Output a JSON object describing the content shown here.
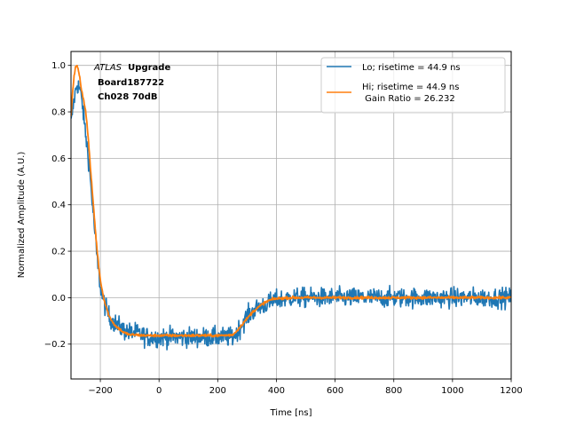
{
  "chart_data": {
    "type": "line",
    "xlabel": "Time [ns]",
    "ylabel": "Normalized Amplitude (A.U.)",
    "xlim": [
      -300,
      1200
    ],
    "ylim": [
      -0.35,
      1.06
    ],
    "xticks": [
      -200,
      0,
      200,
      400,
      600,
      800,
      1000,
      1200
    ],
    "yticks": [
      -0.2,
      0.0,
      0.2,
      0.4,
      0.6,
      0.8,
      1.0
    ],
    "xtick_labels": [
      "−200",
      "0",
      "200",
      "400",
      "600",
      "800",
      "1000",
      "1200"
    ],
    "ytick_labels": [
      "−0.2",
      "0.0",
      "0.2",
      "0.4",
      "0.6",
      "0.8",
      "1.0"
    ],
    "grid": true,
    "legend_position": "upper-right",
    "annotation": {
      "atlas": "ATLAS",
      "upgrade": "Upgrade",
      "board": "Board187722",
      "channel": "Ch028 70dB"
    },
    "series": [
      {
        "name": "Lo; risetime = 44.9 ns",
        "color": "#1f77b4",
        "noise": 0.03,
        "x": [
          -300,
          -290,
          -280,
          -270,
          -260,
          -250,
          -240,
          -230,
          -220,
          -210,
          -200,
          -190,
          -180,
          -170,
          -160,
          -150,
          -140,
          -120,
          -100,
          -80,
          -60,
          -40,
          -20,
          0,
          50,
          100,
          150,
          200,
          225,
          250,
          260,
          280,
          300,
          320,
          340,
          360,
          380,
          400,
          450,
          500,
          600,
          700,
          800,
          900,
          1000,
          1100,
          1200
        ],
        "y": [
          0.75,
          0.85,
          0.92,
          0.9,
          0.82,
          0.7,
          0.6,
          0.45,
          0.3,
          0.15,
          0.05,
          -0.01,
          -0.05,
          -0.08,
          -0.1,
          -0.11,
          -0.12,
          -0.14,
          -0.15,
          -0.15,
          -0.16,
          -0.17,
          -0.17,
          -0.17,
          -0.17,
          -0.17,
          -0.17,
          -0.17,
          -0.17,
          -0.17,
          -0.16,
          -0.12,
          -0.08,
          -0.06,
          -0.04,
          -0.03,
          -0.02,
          -0.01,
          0.0,
          0.0,
          0.0,
          0.0,
          0.0,
          0.0,
          0.0,
          0.0,
          0.0
        ]
      },
      {
        "name": "Hi; risetime = 44.9 ns\n Gain Ratio = 26.232",
        "color": "#ff7f0e",
        "noise": 0.004,
        "x": [
          -300,
          -295,
          -290,
          -285,
          -280,
          -275,
          -270,
          -265,
          -260,
          -255,
          -250,
          -245,
          -240,
          -235,
          -230,
          -225,
          -220,
          -215,
          -210,
          -205,
          -200,
          -195,
          -190,
          -185,
          -180,
          -175,
          -170,
          -165,
          -160,
          -150,
          -140,
          -130,
          -120,
          -110,
          -100,
          -90,
          -80,
          -60,
          -40,
          -20,
          0,
          50,
          100,
          150,
          200,
          230,
          250,
          260,
          270,
          280,
          290,
          300,
          310,
          320,
          330,
          340,
          350,
          360,
          370,
          380,
          390,
          400,
          450,
          500,
          600,
          700,
          800,
          900,
          1000,
          1100,
          1200
        ],
        "y": [
          0.78,
          0.88,
          0.95,
          0.99,
          1.0,
          0.98,
          0.95,
          0.9,
          0.87,
          0.84,
          0.8,
          0.74,
          0.67,
          0.58,
          0.5,
          0.42,
          0.34,
          0.26,
          0.19,
          0.13,
          0.08,
          0.04,
          0.01,
          -0.02,
          -0.04,
          -0.06,
          -0.08,
          -0.09,
          -0.1,
          -0.12,
          -0.13,
          -0.14,
          -0.15,
          -0.155,
          -0.16,
          -0.16,
          -0.16,
          -0.162,
          -0.163,
          -0.163,
          -0.163,
          -0.163,
          -0.163,
          -0.163,
          -0.163,
          -0.162,
          -0.16,
          -0.15,
          -0.135,
          -0.12,
          -0.105,
          -0.09,
          -0.075,
          -0.06,
          -0.05,
          -0.04,
          -0.03,
          -0.022,
          -0.015,
          -0.01,
          -0.006,
          -0.004,
          0.0,
          0.0,
          0.0,
          0.0,
          0.0,
          0.0,
          0.0,
          0.0,
          0.0
        ]
      }
    ]
  }
}
